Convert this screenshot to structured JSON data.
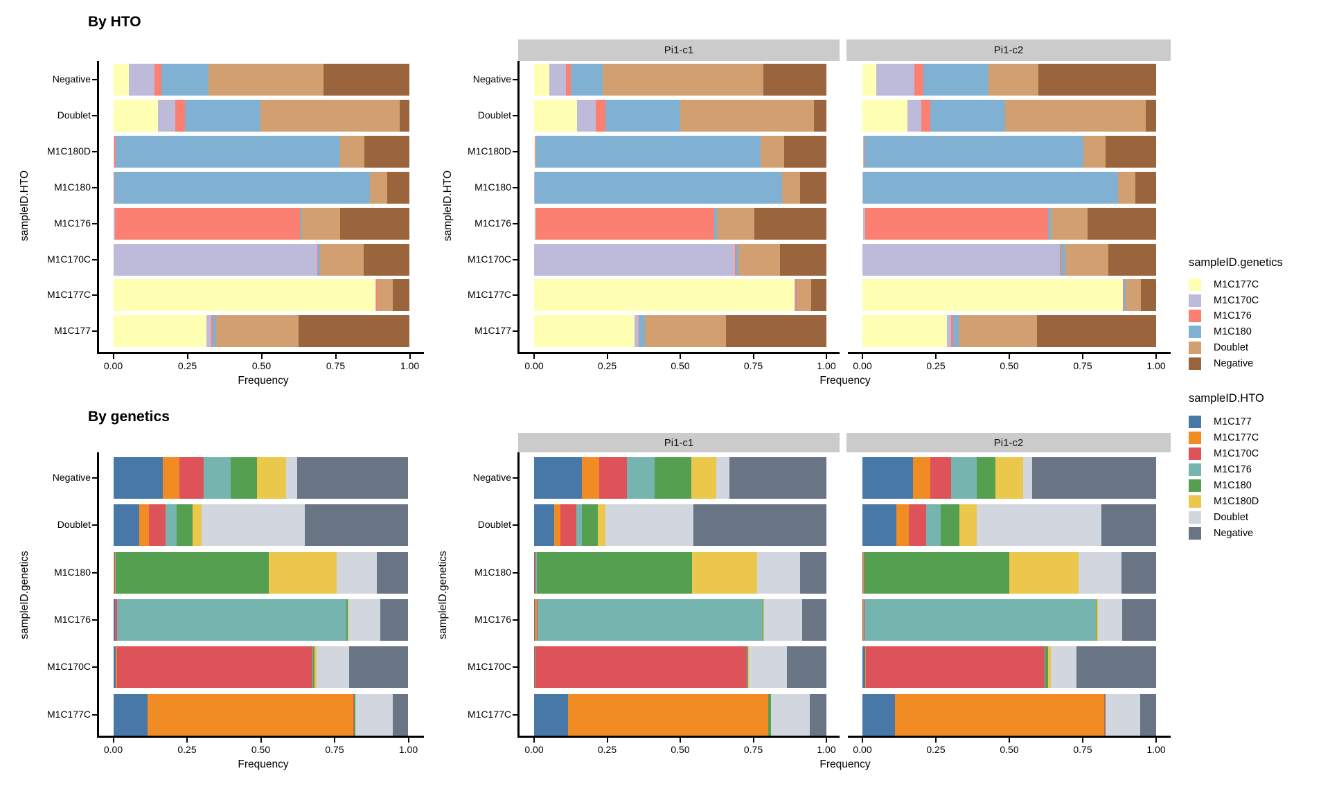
{
  "chart_data": [
    {
      "type": "bar",
      "stacked": true,
      "orientation": "horizontal",
      "title": "By HTO",
      "xlabel": "Frequency",
      "ylabel": "sampleID.HTO",
      "xlim": [
        0,
        1
      ],
      "x_tick_labels": [
        "0.00",
        "0.25",
        "0.50",
        "0.75",
        "1.00"
      ],
      "x_tick_values": [
        0,
        0.25,
        0.5,
        0.75,
        1
      ],
      "legend_title": "sampleID.genetics",
      "categories_top_to_bottom": [
        "Negative",
        "Doublet",
        "M1C180D",
        "M1C180",
        "M1C176",
        "M1C170C",
        "M1C177C",
        "M1C177"
      ],
      "series_keys": [
        "M1C177C",
        "M1C170C",
        "M1C176",
        "M1C180",
        "Doublet",
        "Negative"
      ],
      "series_colors": [
        "#FFFFB3",
        "#BEBADA",
        "#FB8072",
        "#80B1D3",
        "#D2A070",
        "#9A643C"
      ],
      "panels": [
        {
          "label": "",
          "values": [
            [
              0.053,
              0.086,
              0.023,
              0.16,
              0.388,
              0.29
            ],
            [
              0.151,
              0.059,
              0.031,
              0.256,
              0.469,
              0.034
            ],
            [
              0.002,
              0.002,
              0.004,
              0.757,
              0.082,
              0.153
            ],
            [
              0.001,
              0.001,
              0.001,
              0.862,
              0.06,
              0.075
            ],
            [
              0.002,
              0.004,
              0.624,
              0.005,
              0.13,
              0.235
            ],
            [
              0.001,
              0.687,
              0.003,
              0.006,
              0.148,
              0.155
            ],
            [
              0.885,
              0.001,
              0.005,
              0.001,
              0.05,
              0.058
            ],
            [
              0.315,
              0.015,
              0.006,
              0.012,
              0.277,
              0.375
            ]
          ]
        },
        {
          "label": "Pi1-c1",
          "values": [
            [
              0.052,
              0.056,
              0.017,
              0.11,
              0.55,
              0.215
            ],
            [
              0.147,
              0.063,
              0.033,
              0.256,
              0.458,
              0.043
            ],
            [
              0.002,
              0.002,
              0.004,
              0.768,
              0.079,
              0.145
            ],
            [
              0.001,
              0.001,
              0.001,
              0.845,
              0.063,
              0.089
            ],
            [
              0.002,
              0.004,
              0.611,
              0.009,
              0.128,
              0.246
            ],
            [
              0.001,
              0.687,
              0.003,
              0.009,
              0.142,
              0.158
            ],
            [
              0.892,
              0.001,
              0.006,
              0.001,
              0.047,
              0.053
            ],
            [
              0.344,
              0.014,
              0.003,
              0.017,
              0.278,
              0.344
            ]
          ]
        },
        {
          "label": "Pi1-c2",
          "values": [
            [
              0.047,
              0.13,
              0.031,
              0.221,
              0.17,
              0.401
            ],
            [
              0.153,
              0.047,
              0.031,
              0.256,
              0.477,
              0.036
            ],
            [
              0.002,
              0.002,
              0.004,
              0.745,
              0.075,
              0.172
            ],
            [
              0.001,
              0.001,
              0.001,
              0.868,
              0.059,
              0.07
            ],
            [
              0.002,
              0.008,
              0.622,
              0.009,
              0.126,
              0.233
            ],
            [
              0.001,
              0.672,
              0.003,
              0.016,
              0.145,
              0.163
            ],
            [
              0.886,
              0.001,
              0.002,
              0.008,
              0.05,
              0.053
            ],
            [
              0.287,
              0.014,
              0.007,
              0.02,
              0.266,
              0.406
            ]
          ]
        }
      ]
    },
    {
      "type": "bar",
      "stacked": true,
      "orientation": "horizontal",
      "title": "By genetics",
      "xlabel": "Frequency",
      "ylabel": "sampleID.genetics",
      "xlim": [
        0,
        1
      ],
      "x_tick_labels": [
        "0.00",
        "0.25",
        "0.50",
        "0.75",
        "1.00"
      ],
      "x_tick_values": [
        0,
        0.25,
        0.5,
        0.75,
        1
      ],
      "legend_title": "sampleID.HTO",
      "categories_top_to_bottom": [
        "Negative",
        "Doublet",
        "M1C180",
        "M1C176",
        "M1C170C",
        "M1C177C"
      ],
      "series_keys": [
        "M1C177",
        "M1C177C",
        "M1C170C",
        "M1C176",
        "M1C180",
        "M1C180D",
        "Doublet",
        "Negative"
      ],
      "series_colors": [
        "#4878A8",
        "#F08C23",
        "#DE5359",
        "#76B4B0",
        "#55A050",
        "#EBC84B",
        "#D2D6DE",
        "#697584"
      ],
      "panels": [
        {
          "label": "",
          "values": [
            [
              0.168,
              0.057,
              0.082,
              0.09,
              0.09,
              0.098,
              0.038,
              0.377
            ],
            [
              0.088,
              0.033,
              0.057,
              0.037,
              0.053,
              0.031,
              0.351,
              0.35
            ],
            [
              0.002,
              0.002,
              0.002,
              0.002,
              0.519,
              0.229,
              0.138,
              0.106
            ],
            [
              0.005,
              0.002,
              0.005,
              0.778,
              0.004,
              0.004,
              0.108,
              0.094
            ],
            [
              0.008,
              0.004,
              0.663,
              0.002,
              0.006,
              0.005,
              0.112,
              0.2
            ],
            [
              0.116,
              0.698,
              0.001,
              0.001,
              0.004,
              0.001,
              0.126,
              0.053
            ]
          ]
        },
        {
          "label": "Pi1-c1",
          "values": [
            [
              0.163,
              0.06,
              0.095,
              0.095,
              0.124,
              0.087,
              0.044,
              0.332
            ],
            [
              0.068,
              0.023,
              0.054,
              0.019,
              0.054,
              0.026,
              0.301,
              0.455
            ],
            [
              0.002,
              0.002,
              0.003,
              0.002,
              0.531,
              0.223,
              0.148,
              0.089
            ],
            [
              0.002,
              0.008,
              0.002,
              0.771,
              0.002,
              0.002,
              0.13,
              0.083
            ],
            [
              0.003,
              0.002,
              0.722,
              0.002,
              0.004,
              0.002,
              0.131,
              0.134
            ],
            [
              0.116,
              0.684,
              0.001,
              0.001,
              0.008,
              0.001,
              0.131,
              0.058
            ]
          ]
        },
        {
          "label": "Pi1-c2",
          "values": [
            [
              0.173,
              0.058,
              0.072,
              0.086,
              0.065,
              0.094,
              0.029,
              0.423
            ],
            [
              0.115,
              0.043,
              0.058,
              0.05,
              0.065,
              0.058,
              0.424,
              0.187
            ],
            [
              0.002,
              0.002,
              0.002,
              0.002,
              0.492,
              0.237,
              0.144,
              0.119
            ],
            [
              0.002,
              0.002,
              0.002,
              0.789,
              0.003,
              0.004,
              0.083,
              0.115
            ],
            [
              0.01,
              0.002,
              0.608,
              0.002,
              0.01,
              0.009,
              0.089,
              0.27
            ],
            [
              0.112,
              0.712,
              0.001,
              0.001,
              0.002,
              0.001,
              0.116,
              0.055
            ]
          ]
        }
      ]
    }
  ],
  "legends": [
    {
      "title": "sampleID.genetics",
      "items": [
        {
          "label": "M1C177C",
          "color": "#FFFFB3"
        },
        {
          "label": "M1C170C",
          "color": "#BEBADA"
        },
        {
          "label": "M1C176",
          "color": "#FB8072"
        },
        {
          "label": "M1C180",
          "color": "#80B1D3"
        },
        {
          "label": "Doublet",
          "color": "#D2A070"
        },
        {
          "label": "Negative",
          "color": "#9A643C"
        }
      ]
    },
    {
      "title": "sampleID.HTO",
      "items": [
        {
          "label": "M1C177",
          "color": "#4878A8"
        },
        {
          "label": "M1C177C",
          "color": "#F08C23"
        },
        {
          "label": "M1C170C",
          "color": "#DE5359"
        },
        {
          "label": "M1C176",
          "color": "#76B4B0"
        },
        {
          "label": "M1C180",
          "color": "#55A050"
        },
        {
          "label": "M1C180D",
          "color": "#EBC84B"
        },
        {
          "label": "Doublet",
          "color": "#D2D6DE"
        },
        {
          "label": "Negative",
          "color": "#697584"
        }
      ]
    }
  ],
  "strip_background": "#CBCBCB"
}
